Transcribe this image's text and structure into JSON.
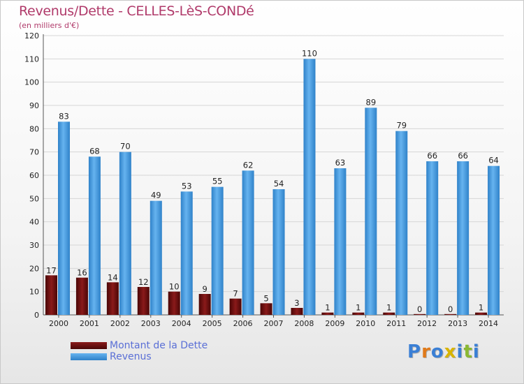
{
  "header": {
    "title": "Revenus/Dette - CELLES-LèS-CONDé",
    "subtitle": "(en milliers d'€)"
  },
  "legend": [
    {
      "label": "Montant de la Dette",
      "color": "#6b0d0d"
    },
    {
      "label": "Revenus",
      "color": "#4a9de0"
    }
  ],
  "logo": {
    "text": "Proxiti",
    "colors": [
      "#3a7fd5",
      "#e07a1a",
      "#3a7fd5",
      "#d8b400",
      "#3a7fd5",
      "#8ab832",
      "#3a7fd5"
    ]
  },
  "chart_data": {
    "type": "bar",
    "title": "Revenus/Dette - CELLES-LèS-CONDé",
    "subtitle": "(en milliers d'€)",
    "categories": [
      "2000",
      "2001",
      "2002",
      "2003",
      "2004",
      "2005",
      "2006",
      "2007",
      "2008",
      "2009",
      "2010",
      "2011",
      "2012",
      "2013",
      "2014"
    ],
    "series": [
      {
        "name": "Montant de la Dette",
        "color": "#6b0d0d",
        "values": [
          17,
          16,
          14,
          12,
          10,
          9,
          7,
          5,
          3,
          1,
          1,
          1,
          0,
          0,
          1
        ]
      },
      {
        "name": "Revenus",
        "color": "#4a9de0",
        "values": [
          83,
          68,
          70,
          49,
          53,
          55,
          62,
          54,
          110,
          63,
          89,
          79,
          66,
          66,
          64
        ]
      }
    ],
    "ylim": [
      0,
      120
    ],
    "yticks": [
      0,
      10,
      20,
      30,
      40,
      50,
      60,
      70,
      80,
      90,
      100,
      110,
      120
    ],
    "grid": true,
    "legend_position": "bottom-left"
  }
}
